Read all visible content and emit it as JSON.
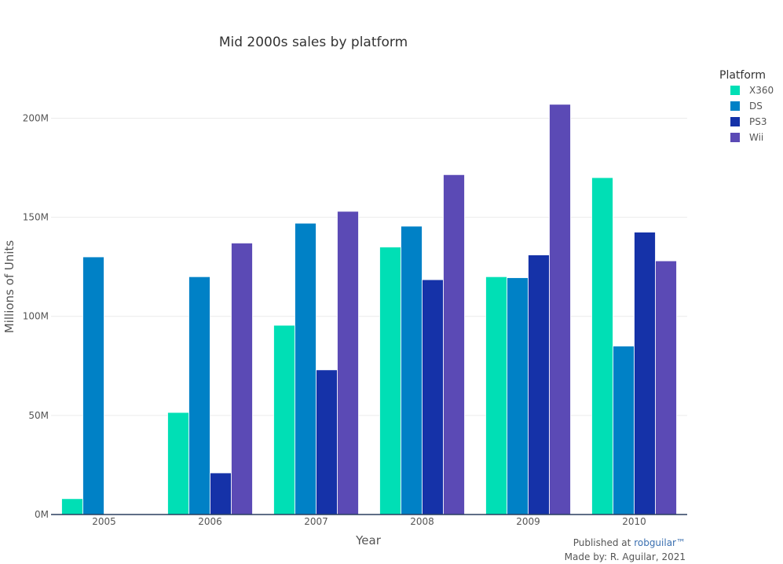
{
  "chart_data": {
    "type": "bar",
    "title": "Mid 2000s sales by platform",
    "xlabel": "Year",
    "ylabel": "Millions of Units",
    "categories": [
      "2005",
      "2006",
      "2007",
      "2008",
      "2009",
      "2010"
    ],
    "ylim": [
      0,
      220000000
    ],
    "yticks": [
      0,
      50000000,
      100000000,
      150000000,
      200000000
    ],
    "ytick_labels": [
      "0M",
      "50M",
      "100M",
      "150M",
      "200M"
    ],
    "grid": true,
    "legend_title": "Platform",
    "legend_position": "top-right",
    "series": [
      {
        "name": "X360",
        "color": "#00dfb5",
        "values": [
          8000000,
          51500000,
          95500000,
          135000000,
          120000000,
          170000000
        ]
      },
      {
        "name": "DS",
        "color": "#0081c6",
        "values": [
          130000000,
          120000000,
          147000000,
          145500000,
          119500000,
          85000000
        ]
      },
      {
        "name": "PS3",
        "color": "#1532a8",
        "values": [
          0,
          21000000,
          73000000,
          118500000,
          131000000,
          142500000
        ]
      },
      {
        "name": "Wii",
        "color": "#5b4ab5",
        "values": [
          0,
          137000000,
          153000000,
          171500000,
          207000000,
          128000000
        ]
      }
    ]
  },
  "footer": {
    "published_prefix": "Published at ",
    "published_link": "robguilar™",
    "made_by": "Made by: R. Aguilar, 2021"
  }
}
